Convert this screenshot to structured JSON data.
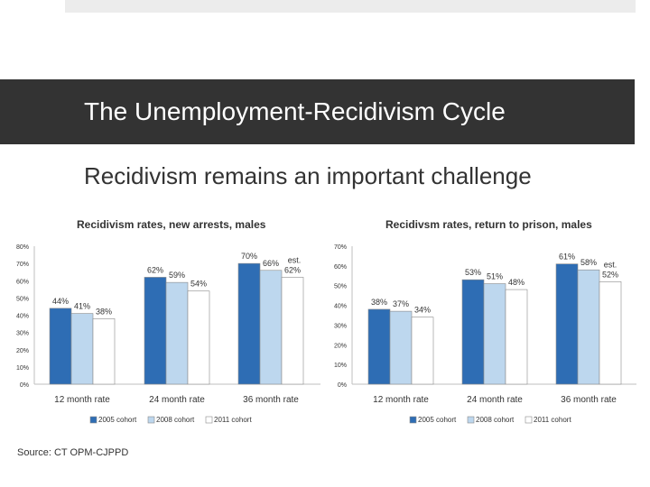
{
  "slide": {
    "title": "The Unemployment-Recidivism Cycle",
    "subtitle": "Recidivism remains an important challenge",
    "source": "Source: CT OPM-CJPPD"
  },
  "colors": {
    "series": [
      "#2e6db4",
      "#bdd7ee",
      "#ffffff"
    ],
    "bar_stroke": "#8a8a8a",
    "title_bar": "#333333"
  },
  "chart_data": [
    {
      "type": "bar",
      "title": "Recidivism rates, new arrests, males",
      "categories": [
        "12 month rate",
        "24 month rate",
        "36 month rate"
      ],
      "series": [
        {
          "name": "2005 cohort",
          "values": [
            44,
            62,
            70
          ],
          "labels": [
            "44%",
            "62%",
            "70%"
          ]
        },
        {
          "name": "2008 cohort",
          "values": [
            41,
            59,
            66
          ],
          "labels": [
            "41%",
            "59%",
            "66%"
          ]
        },
        {
          "name": "2011 cohort",
          "values": [
            38,
            54,
            62
          ],
          "labels": [
            "38%",
            "54%",
            "62%"
          ]
        }
      ],
      "annotation": "est.",
      "ylim": [
        0,
        80
      ],
      "yticks": [
        "0%",
        "10%",
        "20%",
        "30%",
        "40%",
        "50%",
        "60%",
        "70%",
        "80%"
      ],
      "xlabel": "",
      "ylabel": "",
      "legend": "bottom"
    },
    {
      "type": "bar",
      "title": "Recidivsm rates, return to prison, males",
      "categories": [
        "12 month rate",
        "24 month rate",
        "36 month rate"
      ],
      "series": [
        {
          "name": "2005 cohort",
          "values": [
            38,
            53,
            61
          ],
          "labels": [
            "38%",
            "53%",
            "61%"
          ]
        },
        {
          "name": "2008 cohort",
          "values": [
            37,
            51,
            58
          ],
          "labels": [
            "37%",
            "51%",
            "58%"
          ]
        },
        {
          "name": "2011 cohort",
          "values": [
            34,
            48,
            52
          ],
          "labels": [
            "34%",
            "48%",
            "52%"
          ]
        }
      ],
      "annotation": "est.",
      "ylim": [
        0,
        70
      ],
      "yticks": [
        "0%",
        "10%",
        "20%",
        "30%",
        "40%",
        "50%",
        "60%",
        "70%"
      ],
      "xlabel": "",
      "ylabel": "",
      "legend": "bottom"
    }
  ]
}
